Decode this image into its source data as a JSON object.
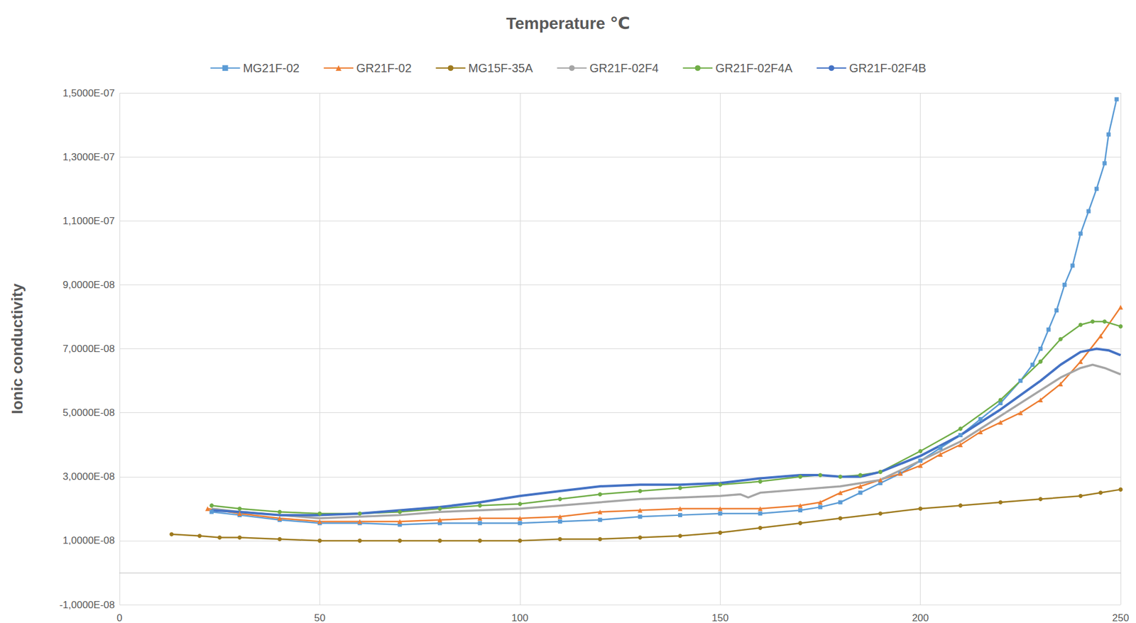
{
  "chart_data": {
    "type": "line",
    "title": "Temperature ℃",
    "y_label": "Ionic conductivity",
    "xlim": [
      0,
      250
    ],
    "xticks": [
      0,
      50,
      100,
      150,
      200,
      250
    ],
    "ylim": [
      -1e-08,
      1.5e-07
    ],
    "yticks": [
      {
        "value": -1e-08,
        "label": "-1,0000E-08"
      },
      {
        "value": 1e-08,
        "label": "1,0000E-08"
      },
      {
        "value": 3e-08,
        "label": "3,0000E-08"
      },
      {
        "value": 5e-08,
        "label": "5,0000E-08"
      },
      {
        "value": 7e-08,
        "label": "7,0000E-08"
      },
      {
        "value": 9e-08,
        "label": "9,0000E-08"
      },
      {
        "value": 1.1e-07,
        "label": "1,1000E-07"
      },
      {
        "value": 1.3e-07,
        "label": "1,3000E-07"
      },
      {
        "value": 1.5e-07,
        "label": "1,5000E-07"
      }
    ],
    "grid": true,
    "legend": "top",
    "series": [
      {
        "name": "MG21F-02",
        "color": "#5b9bd5",
        "marker": "square",
        "x": [
          23,
          30,
          40,
          50,
          60,
          70,
          80,
          90,
          100,
          110,
          120,
          130,
          140,
          150,
          160,
          170,
          175,
          180,
          185,
          190,
          195,
          200,
          205,
          210,
          215,
          220,
          225,
          228,
          230,
          232,
          234,
          236,
          238,
          240,
          242,
          244,
          246,
          247,
          249
        ],
        "values": [
          1.9e-08,
          1.8e-08,
          1.65e-08,
          1.55e-08,
          1.55e-08,
          1.5e-08,
          1.55e-08,
          1.55e-08,
          1.55e-08,
          1.6e-08,
          1.65e-08,
          1.75e-08,
          1.8e-08,
          1.85e-08,
          1.85e-08,
          1.95e-08,
          2.05e-08,
          2.2e-08,
          2.5e-08,
          2.8e-08,
          3.1e-08,
          3.5e-08,
          3.9e-08,
          4.3e-08,
          4.8e-08,
          5.3e-08,
          6e-08,
          6.5e-08,
          7e-08,
          7.6e-08,
          8.2e-08,
          9e-08,
          9.6e-08,
          1.06e-07,
          1.13e-07,
          1.2e-07,
          1.28e-07,
          1.37e-07,
          1.48e-07
        ]
      },
      {
        "name": "GR21F-02",
        "color": "#ed7d31",
        "marker": "triangle",
        "x": [
          22,
          30,
          40,
          50,
          60,
          70,
          80,
          90,
          100,
          110,
          120,
          130,
          140,
          150,
          160,
          170,
          175,
          180,
          185,
          190,
          195,
          200,
          205,
          210,
          215,
          220,
          225,
          230,
          235,
          240,
          245,
          250
        ],
        "values": [
          2e-08,
          1.85e-08,
          1.7e-08,
          1.6e-08,
          1.6e-08,
          1.6e-08,
          1.65e-08,
          1.7e-08,
          1.7e-08,
          1.75e-08,
          1.9e-08,
          1.95e-08,
          2e-08,
          2e-08,
          2e-08,
          2.1e-08,
          2.2e-08,
          2.5e-08,
          2.7e-08,
          2.9e-08,
          3.1e-08,
          3.35e-08,
          3.7e-08,
          4e-08,
          4.4e-08,
          4.7e-08,
          5e-08,
          5.4e-08,
          5.9e-08,
          6.6e-08,
          7.4e-08,
          8.3e-08
        ]
      },
      {
        "name": "MG15F-35A",
        "color": "#9e7a1e",
        "marker": "circle",
        "x": [
          13,
          20,
          25,
          30,
          40,
          50,
          60,
          70,
          80,
          90,
          100,
          110,
          120,
          130,
          140,
          150,
          160,
          170,
          180,
          190,
          200,
          210,
          220,
          230,
          240,
          245,
          250
        ],
        "values": [
          1.2e-08,
          1.15e-08,
          1.1e-08,
          1.1e-08,
          1.05e-08,
          1e-08,
          1e-08,
          1e-08,
          1e-08,
          1e-08,
          1e-08,
          1.05e-08,
          1.05e-08,
          1.1e-08,
          1.15e-08,
          1.25e-08,
          1.4e-08,
          1.55e-08,
          1.7e-08,
          1.85e-08,
          2e-08,
          2.1e-08,
          2.2e-08,
          2.3e-08,
          2.4e-08,
          2.5e-08,
          2.6e-08
        ]
      },
      {
        "name": "GR21F-02F4",
        "color": "#a5a5a5",
        "marker": "none",
        "x": [
          23,
          30,
          40,
          50,
          60,
          70,
          80,
          90,
          100,
          110,
          120,
          130,
          140,
          150,
          155,
          157,
          160,
          170,
          180,
          190,
          200,
          210,
          220,
          230,
          235,
          240,
          243,
          246,
          250
        ],
        "values": [
          2e-08,
          1.9e-08,
          1.8e-08,
          1.7e-08,
          1.75e-08,
          1.8e-08,
          1.9e-08,
          1.95e-08,
          2e-08,
          2.1e-08,
          2.2e-08,
          2.3e-08,
          2.35e-08,
          2.4e-08,
          2.45e-08,
          2.35e-08,
          2.5e-08,
          2.6e-08,
          2.7e-08,
          2.9e-08,
          3.5e-08,
          4.1e-08,
          4.9e-08,
          5.7e-08,
          6.1e-08,
          6.4e-08,
          6.5e-08,
          6.4e-08,
          6.2e-08
        ]
      },
      {
        "name": "GR21F-02F4A",
        "color": "#70ad47",
        "marker": "circle",
        "x": [
          23,
          30,
          40,
          50,
          60,
          70,
          80,
          90,
          100,
          110,
          120,
          130,
          140,
          150,
          160,
          170,
          175,
          180,
          185,
          190,
          200,
          210,
          220,
          230,
          235,
          240,
          243,
          246,
          250
        ],
        "values": [
          2.1e-08,
          2e-08,
          1.9e-08,
          1.85e-08,
          1.85e-08,
          1.9e-08,
          2e-08,
          2.1e-08,
          2.15e-08,
          2.3e-08,
          2.45e-08,
          2.55e-08,
          2.65e-08,
          2.75e-08,
          2.85e-08,
          3e-08,
          3.05e-08,
          3e-08,
          3.05e-08,
          3.15e-08,
          3.8e-08,
          4.5e-08,
          5.4e-08,
          6.6e-08,
          7.3e-08,
          7.75e-08,
          7.85e-08,
          7.85e-08,
          7.7e-08
        ]
      },
      {
        "name": "GR21F-02F4B",
        "color": "#4472c4",
        "marker": "none",
        "x": [
          23,
          30,
          40,
          50,
          60,
          70,
          80,
          90,
          100,
          110,
          120,
          130,
          140,
          150,
          160,
          170,
          175,
          180,
          185,
          190,
          200,
          210,
          220,
          230,
          235,
          240,
          244,
          247,
          250
        ],
        "values": [
          1.95e-08,
          1.9e-08,
          1.8e-08,
          1.8e-08,
          1.85e-08,
          1.95e-08,
          2.05e-08,
          2.2e-08,
          2.4e-08,
          2.55e-08,
          2.7e-08,
          2.75e-08,
          2.75e-08,
          2.8e-08,
          2.95e-08,
          3.05e-08,
          3.05e-08,
          3e-08,
          3e-08,
          3.15e-08,
          3.65e-08,
          4.3e-08,
          5.1e-08,
          6e-08,
          6.5e-08,
          6.9e-08,
          7e-08,
          6.95e-08,
          6.8e-08
        ]
      }
    ]
  }
}
